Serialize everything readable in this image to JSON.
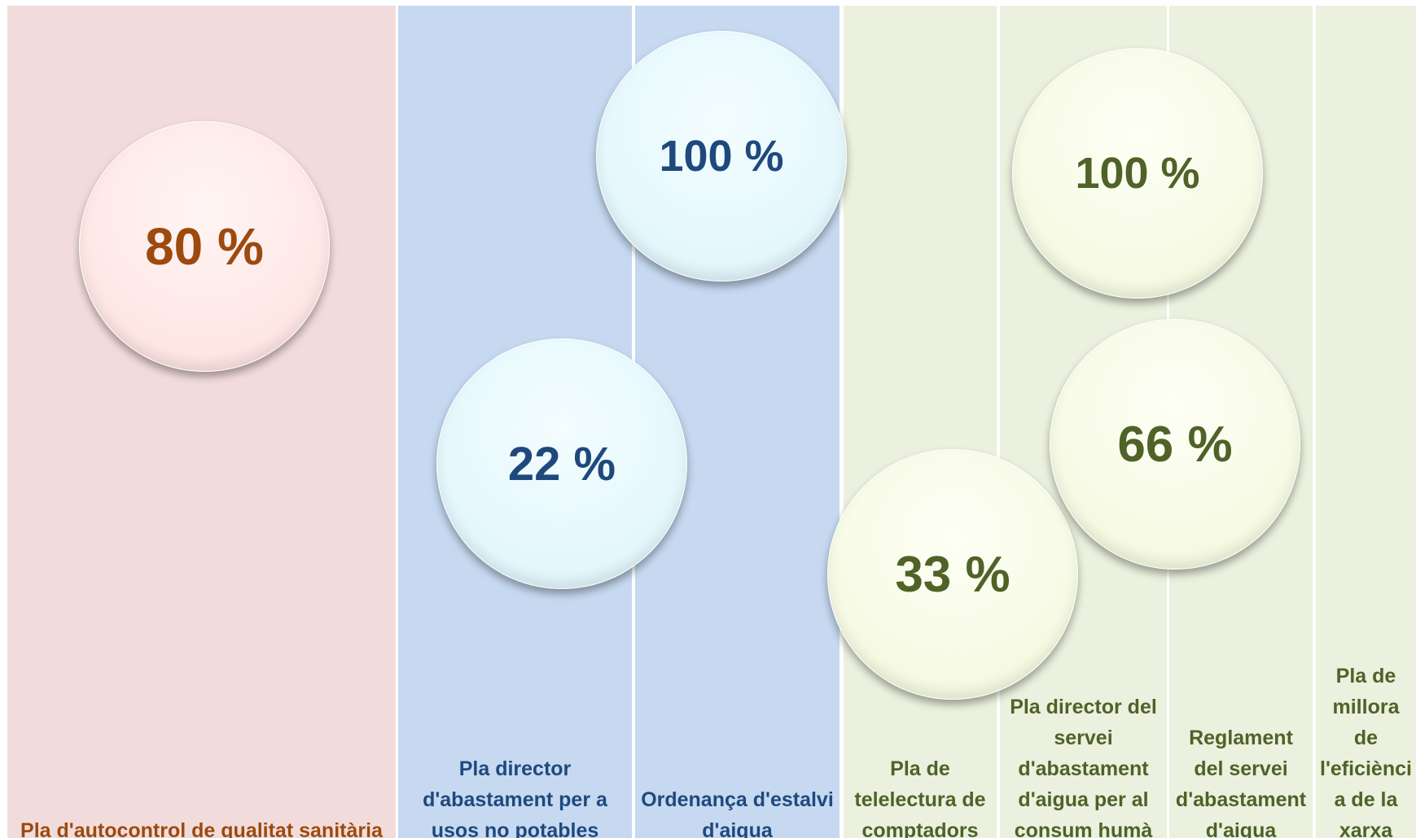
{
  "columns": [
    {
      "label": "Pla d'autocontrol de qualitat sanitària",
      "bubbles": [
        "80 %"
      ]
    },
    {
      "label": "Pla director d'abastament per a usos no potables",
      "bubbles": [
        "22 %"
      ]
    },
    {
      "label": "Ordenança d'estalvi d'aigua",
      "bubbles": [
        "100 %"
      ]
    },
    {
      "label": "Pla de telelectura de comptadors",
      "bubbles": [
        "33 %"
      ]
    },
    {
      "label": "Pla director del servei d'abastament d'aigua per al consum humà",
      "bubbles": [
        "100 %"
      ]
    },
    {
      "label": "Reglament del servei d'abastament d'aigua",
      "bubbles": [
        "66 %"
      ]
    },
    {
      "label": "Pla de millora de l'eficiència de la xarxa"
    }
  ]
}
